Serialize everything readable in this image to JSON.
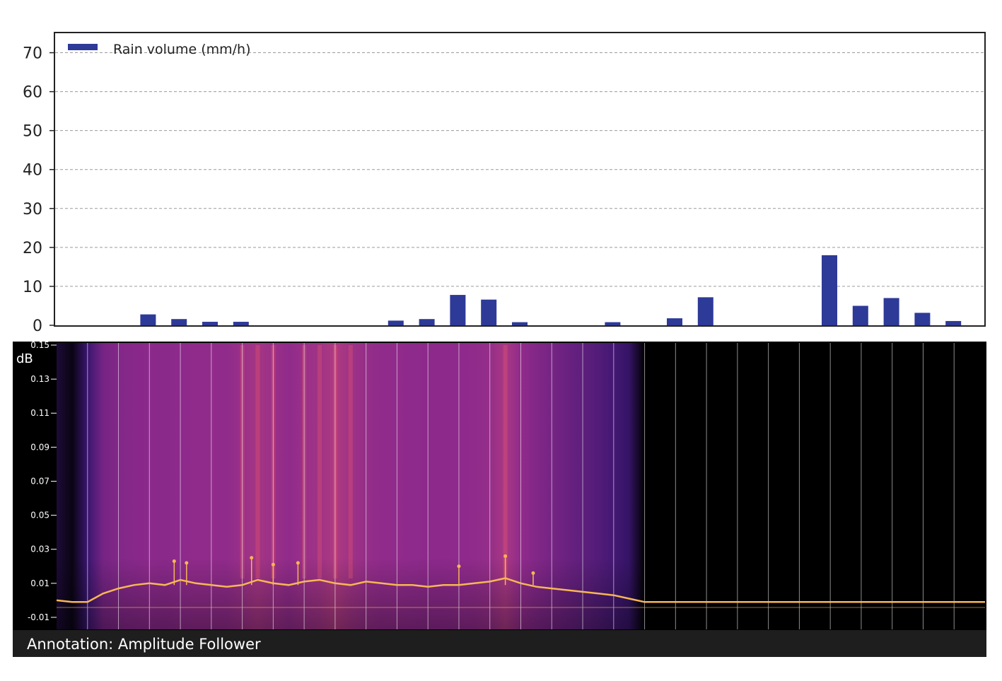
{
  "chart_data": [
    {
      "type": "bar",
      "legend": {
        "label": "Rain volume (mm/h)",
        "placement": "top-left"
      },
      "x": [
        3,
        4,
        5,
        6,
        11,
        12,
        13,
        14,
        15,
        18,
        20,
        21,
        25,
        26,
        27,
        28,
        29
      ],
      "values": [
        2.8,
        1.6,
        0.9,
        0.9,
        1.2,
        1.6,
        7.8,
        6.6,
        0.8,
        0.8,
        1.8,
        7.2,
        18,
        5,
        7,
        3.2,
        1.1
      ],
      "xlim": [
        0,
        30
      ],
      "ylim": [
        0,
        75
      ],
      "yticks": [
        0,
        10,
        20,
        30,
        40,
        50,
        60,
        70
      ],
      "grid": "horizontal-dashed",
      "color": "#2e3a97"
    },
    {
      "type": "heatmap",
      "ylabel": "dB",
      "yticks": [
        0.15,
        0.13,
        0.11,
        0.09,
        0.07,
        0.05,
        0.03,
        0.01,
        -0.01
      ],
      "ylim": [
        -0.015,
        0.15
      ],
      "annotation": "Annotation: Amplitude Follower",
      "colors": {
        "background": "#000000",
        "low": "#3a1670",
        "mid": "#8e2a8c",
        "high": "#e4566e",
        "trace": "#f7b655"
      },
      "columns": [
        {
          "x": 0.0,
          "level": 0.15
        },
        {
          "x": 0.5,
          "level": 0.05
        },
        {
          "x": 1.0,
          "level": 0.3
        },
        {
          "x": 1.5,
          "level": 0.55
        },
        {
          "x": 2.0,
          "level": 0.6
        },
        {
          "x": 2.5,
          "level": 0.62
        },
        {
          "x": 3.0,
          "level": 0.64
        },
        {
          "x": 3.5,
          "level": 0.63
        },
        {
          "x": 4.0,
          "level": 0.65
        },
        {
          "x": 4.5,
          "level": 0.66
        },
        {
          "x": 5.0,
          "level": 0.66
        },
        {
          "x": 5.5,
          "level": 0.66
        },
        {
          "x": 6.0,
          "level": 0.7
        },
        {
          "x": 6.5,
          "level": 0.74
        },
        {
          "x": 7.0,
          "level": 0.7
        },
        {
          "x": 7.5,
          "level": 0.66
        },
        {
          "x": 8.0,
          "level": 0.7
        },
        {
          "x": 8.5,
          "level": 0.72
        },
        {
          "x": 9.0,
          "level": 0.78
        },
        {
          "x": 9.5,
          "level": 0.72
        },
        {
          "x": 10.0,
          "level": 0.68
        },
        {
          "x": 10.5,
          "level": 0.66
        },
        {
          "x": 11.0,
          "level": 0.66
        },
        {
          "x": 11.5,
          "level": 0.65
        },
        {
          "x": 12.0,
          "level": 0.64
        },
        {
          "x": 12.5,
          "level": 0.64
        },
        {
          "x": 13.0,
          "level": 0.65
        },
        {
          "x": 13.5,
          "level": 0.66
        },
        {
          "x": 14.0,
          "level": 0.68
        },
        {
          "x": 14.5,
          "level": 0.76
        },
        {
          "x": 15.0,
          "level": 0.66
        },
        {
          "x": 15.5,
          "level": 0.6
        },
        {
          "x": 16.0,
          "level": 0.55
        },
        {
          "x": 16.5,
          "level": 0.5
        },
        {
          "x": 17.0,
          "level": 0.45
        },
        {
          "x": 17.5,
          "level": 0.4
        },
        {
          "x": 18.0,
          "level": 0.34
        },
        {
          "x": 18.5,
          "level": 0.27
        },
        {
          "x": 19.0,
          "level": 0.0
        },
        {
          "x": 19.5,
          "level": 0.0
        },
        {
          "x": 20.0,
          "level": 0.0
        },
        {
          "x": 20.5,
          "level": 0.0
        },
        {
          "x": 21.0,
          "level": 0.0
        },
        {
          "x": 21.5,
          "level": 0.0
        },
        {
          "x": 22.0,
          "level": 0.0
        },
        {
          "x": 22.5,
          "level": 0.0
        },
        {
          "x": 23.0,
          "level": 0.0
        },
        {
          "x": 23.5,
          "level": 0.0
        },
        {
          "x": 24.0,
          "level": 0.0
        },
        {
          "x": 24.5,
          "level": 0.0
        },
        {
          "x": 25.0,
          "level": 0.0
        },
        {
          "x": 25.5,
          "level": 0.0
        },
        {
          "x": 26.0,
          "level": 0.0
        },
        {
          "x": 26.5,
          "level": 0.0
        },
        {
          "x": 27.0,
          "level": 0.0
        },
        {
          "x": 27.5,
          "level": 0.0
        },
        {
          "x": 28.0,
          "level": 0.0
        },
        {
          "x": 28.5,
          "level": 0.0
        },
        {
          "x": 29.0,
          "level": 0.0
        },
        {
          "x": 29.5,
          "level": 0.0
        }
      ],
      "follower": {
        "x": [
          0,
          0.5,
          1,
          1.5,
          2,
          2.5,
          3,
          3.5,
          4,
          4.5,
          5,
          5.5,
          6,
          6.5,
          7,
          7.5,
          8,
          8.5,
          9,
          9.5,
          10,
          10.5,
          11,
          11.5,
          12,
          12.5,
          13,
          13.5,
          14,
          14.5,
          15,
          15.5,
          16,
          16.5,
          17,
          17.5,
          18,
          18.5,
          19,
          20,
          21,
          22,
          23,
          24,
          25,
          26,
          27,
          28,
          29,
          30
        ],
        "y": [
          0.0,
          -0.001,
          -0.001,
          0.004,
          0.007,
          0.009,
          0.01,
          0.009,
          0.012,
          0.01,
          0.009,
          0.008,
          0.009,
          0.012,
          0.01,
          0.009,
          0.011,
          0.012,
          0.01,
          0.009,
          0.011,
          0.01,
          0.009,
          0.009,
          0.008,
          0.009,
          0.009,
          0.01,
          0.011,
          0.013,
          0.01,
          0.008,
          0.007,
          0.006,
          0.005,
          0.004,
          0.003,
          0.001,
          -0.001,
          -0.001,
          -0.001,
          -0.001,
          -0.001,
          -0.001,
          -0.001,
          -0.001,
          -0.001,
          -0.001,
          -0.001,
          -0.001
        ]
      },
      "peaks": [
        {
          "x": 3.8,
          "y": 0.023
        },
        {
          "x": 4.2,
          "y": 0.022
        },
        {
          "x": 6.3,
          "y": 0.025
        },
        {
          "x": 7.0,
          "y": 0.021
        },
        {
          "x": 7.8,
          "y": 0.022
        },
        {
          "x": 13.0,
          "y": 0.02
        },
        {
          "x": 14.5,
          "y": 0.026
        },
        {
          "x": 15.4,
          "y": 0.016
        }
      ]
    }
  ]
}
